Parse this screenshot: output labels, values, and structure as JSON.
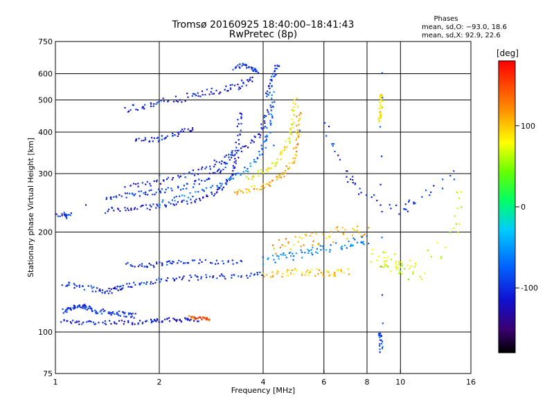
{
  "chart_data": {
    "type": "scatter",
    "title": "Tromsø 20160925 18:40:00–18:41:43",
    "subtitle": "RwPretec (8p)",
    "xlabel": "Frequency [MHz]",
    "ylabel": "Stationary phase Virtual Height [km]",
    "x_scale": "log",
    "y_scale": "log",
    "xlim": [
      1,
      16
    ],
    "ylim": [
      75,
      750
    ],
    "x_ticks": [
      1,
      2,
      4,
      6,
      8,
      10,
      16
    ],
    "y_ticks": [
      75,
      100,
      200,
      300,
      400,
      500,
      600,
      750
    ],
    "grid": true,
    "stats_title": "Phases",
    "stats_lines": [
      "mean, sd,O: −93.0, 18.6",
      "mean, sd,X:  92.9, 22.6"
    ],
    "colorbar": {
      "label": "[deg]",
      "range": [
        -180,
        180
      ],
      "ticks": [
        100,
        0,
        -100
      ]
    },
    "traces": [
      {
        "phase": -100,
        "spread": 0.03,
        "points": [
          [
            1.05,
            115
          ],
          [
            1.1,
            118
          ],
          [
            1.15,
            120
          ],
          [
            1.2,
            119
          ],
          [
            1.25,
            118
          ],
          [
            1.3,
            116
          ],
          [
            1.4,
            115
          ],
          [
            1.5,
            114
          ],
          [
            1.6,
            113
          ],
          [
            1.7,
            112
          ]
        ]
      },
      {
        "phase": -110,
        "spread": 0.025,
        "points": [
          [
            1.05,
            108
          ],
          [
            1.15,
            107
          ],
          [
            1.3,
            107
          ],
          [
            1.5,
            107
          ],
          [
            1.7,
            107
          ],
          [
            1.9,
            108
          ],
          [
            2.0,
            108
          ],
          [
            2.2,
            109
          ],
          [
            2.4,
            109
          ],
          [
            2.6,
            109
          ]
        ]
      },
      {
        "phase": 140,
        "spread": 0.015,
        "points": [
          [
            2.45,
            111
          ],
          [
            2.55,
            110
          ],
          [
            2.7,
            110
          ],
          [
            2.8,
            109
          ]
        ]
      },
      {
        "phase": -100,
        "spread": 0.03,
        "points": [
          [
            1.05,
            140
          ],
          [
            1.15,
            138
          ],
          [
            1.3,
            135
          ],
          [
            1.4,
            132
          ],
          [
            1.5,
            135
          ],
          [
            1.6,
            138
          ],
          [
            1.8,
            140
          ],
          [
            2.0,
            143
          ],
          [
            2.3,
            145
          ],
          [
            2.6,
            146
          ],
          [
            3.0,
            147
          ],
          [
            3.5,
            148
          ],
          [
            4.0,
            149
          ]
        ]
      },
      {
        "phase": -100,
        "spread": 0.03,
        "points": [
          [
            1.6,
            160
          ],
          [
            1.8,
            158
          ],
          [
            2.0,
            160
          ],
          [
            2.2,
            162
          ],
          [
            2.5,
            162
          ],
          [
            3.0,
            163
          ],
          [
            3.5,
            163
          ]
        ]
      },
      {
        "phase": 100,
        "spread": 0.04,
        "points": [
          [
            4.0,
            150
          ],
          [
            4.5,
            150
          ],
          [
            5.0,
            152
          ],
          [
            5.5,
            152
          ],
          [
            6.0,
            150
          ],
          [
            6.5,
            150
          ],
          [
            7.0,
            152
          ]
        ]
      },
      {
        "phase": -60,
        "spread": 0.05,
        "points": [
          [
            4.0,
            165
          ],
          [
            4.5,
            168
          ],
          [
            5.0,
            170
          ],
          [
            5.5,
            175
          ],
          [
            6.0,
            178
          ],
          [
            7.0,
            183
          ],
          [
            7.5,
            188
          ],
          [
            8.0,
            190
          ]
        ]
      },
      {
        "phase": 110,
        "spread": 0.08,
        "points": [
          [
            4.2,
            180
          ],
          [
            4.8,
            185
          ],
          [
            5.5,
            190
          ],
          [
            6.2,
            195
          ],
          [
            7.0,
            200
          ],
          [
            7.8,
            205
          ]
        ]
      },
      {
        "phase": -110,
        "spread": 0.03,
        "points": [
          [
            1.4,
            232
          ],
          [
            1.6,
            235
          ],
          [
            1.8,
            237
          ],
          [
            2.0,
            240
          ],
          [
            2.3,
            245
          ],
          [
            2.6,
            252
          ],
          [
            2.9,
            262
          ],
          [
            3.1,
            275
          ],
          [
            3.25,
            300
          ],
          [
            3.35,
            340
          ],
          [
            3.4,
            400
          ],
          [
            3.45,
            460
          ]
        ]
      },
      {
        "phase": -100,
        "spread": 0.03,
        "points": [
          [
            1.4,
            255
          ],
          [
            1.6,
            258
          ],
          [
            1.8,
            262
          ],
          [
            2.0,
            265
          ],
          [
            2.3,
            272
          ],
          [
            2.6,
            282
          ],
          [
            2.9,
            300
          ],
          [
            3.1,
            320
          ],
          [
            3.25,
            350
          ]
        ]
      },
      {
        "phase": -70,
        "spread": 0.03,
        "points": [
          [
            2.0,
            245
          ],
          [
            2.4,
            255
          ],
          [
            2.8,
            270
          ],
          [
            3.2,
            290
          ],
          [
            3.6,
            310
          ],
          [
            3.9,
            340
          ],
          [
            4.1,
            380
          ],
          [
            4.2,
            440
          ],
          [
            4.3,
            520
          ]
        ]
      },
      {
        "phase": -110,
        "spread": 0.03,
        "points": [
          [
            1.6,
            275
          ],
          [
            1.9,
            280
          ],
          [
            2.2,
            290
          ],
          [
            2.6,
            305
          ],
          [
            3.0,
            325
          ],
          [
            3.4,
            350
          ],
          [
            3.8,
            380
          ],
          [
            4.0,
            420
          ],
          [
            4.2,
            480
          ]
        ]
      },
      {
        "phase": 110,
        "spread": 0.03,
        "points": [
          [
            3.3,
            262
          ],
          [
            3.6,
            268
          ],
          [
            4.0,
            275
          ],
          [
            4.3,
            285
          ],
          [
            4.6,
            300
          ],
          [
            4.9,
            330
          ],
          [
            5.0,
            370
          ],
          [
            5.05,
            420
          ],
          [
            5.1,
            470
          ]
        ]
      },
      {
        "phase": 80,
        "spread": 0.03,
        "points": [
          [
            3.6,
            290
          ],
          [
            4.0,
            305
          ],
          [
            4.3,
            320
          ],
          [
            4.6,
            350
          ],
          [
            4.8,
            390
          ],
          [
            4.9,
            440
          ],
          [
            4.95,
            500
          ]
        ]
      },
      {
        "phase": -110,
        "spread": 0.03,
        "points": [
          [
            1.7,
            380
          ],
          [
            1.9,
            378
          ],
          [
            2.1,
            385
          ],
          [
            2.3,
            400
          ],
          [
            2.5,
            410
          ]
        ]
      },
      {
        "phase": -110,
        "spread": 0.04,
        "points": [
          [
            1.6,
            470
          ],
          [
            1.8,
            480
          ],
          [
            2.0,
            490
          ],
          [
            2.3,
            505
          ],
          [
            2.6,
            520
          ],
          [
            2.9,
            530
          ],
          [
            3.2,
            540
          ],
          [
            3.5,
            560
          ],
          [
            3.7,
            580
          ]
        ]
      },
      {
        "phase": -100,
        "spread": 0.02,
        "points": [
          [
            3.3,
            620
          ],
          [
            3.5,
            640
          ],
          [
            3.7,
            620
          ],
          [
            3.85,
            610
          ]
        ]
      },
      {
        "phase": -100,
        "spread": 0.03,
        "points": [
          [
            4.1,
            520
          ],
          [
            4.2,
            560
          ],
          [
            4.3,
            600
          ],
          [
            4.4,
            640
          ]
        ]
      },
      {
        "phase": 90,
        "spread": 0.02,
        "points": [
          [
            8.7,
            430
          ],
          [
            8.75,
            460
          ],
          [
            8.8,
            500
          ],
          [
            8.8,
            520
          ]
        ]
      },
      {
        "phase": -90,
        "spread": 0.02,
        "points": [
          [
            8.7,
            100
          ],
          [
            8.75,
            96
          ],
          [
            8.8,
            88
          ],
          [
            8.8,
            610
          ]
        ]
      },
      {
        "phase": -100,
        "spread": 0.05,
        "points": [
          [
            1.05,
            225
          ],
          [
            1.1,
            222
          ],
          [
            1.0,
            230
          ],
          [
            6.0,
            420
          ],
          [
            7.0,
            300
          ],
          [
            7.5,
            270
          ],
          [
            10.0,
            230
          ],
          [
            11.0,
            250
          ],
          [
            14.5,
            300
          ]
        ]
      },
      {
        "phase": 70,
        "spread": 0.1,
        "points": [
          [
            8.5,
            170
          ],
          [
            9.0,
            165
          ],
          [
            9.5,
            160
          ],
          [
            10.0,
            160
          ],
          [
            10.5,
            158
          ],
          [
            11.0,
            150
          ],
          [
            14.5,
            200
          ],
          [
            15.0,
            270
          ]
        ]
      }
    ]
  }
}
